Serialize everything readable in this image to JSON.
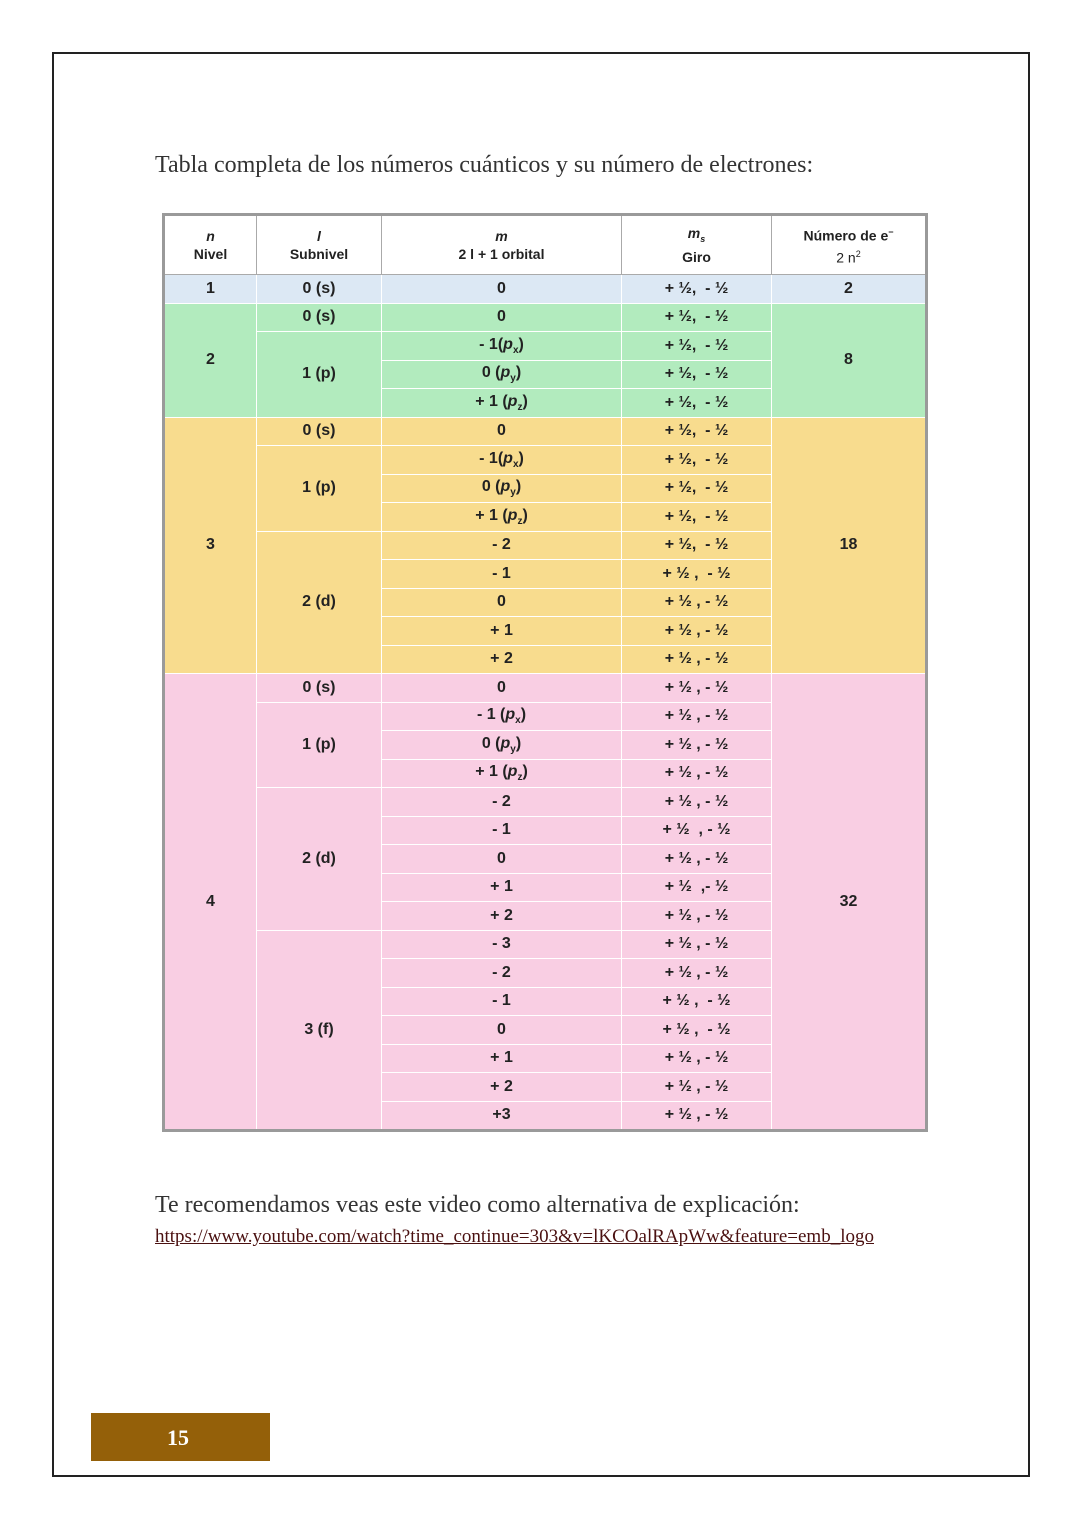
{
  "intro": "Tabla completa de los números cuánticos y su número de electrones:",
  "table": {
    "header": [
      {
        "symbol": "n",
        "label": "Nivel"
      },
      {
        "symbol": "l",
        "label": "Subnivel"
      },
      {
        "symbol": "m",
        "label": "2 l + 1  orbital"
      },
      {
        "symbol": "m",
        "sub": "s",
        "label": "Giro"
      },
      {
        "label": "Número de e",
        "sup": "−",
        "formula": "2 n",
        "formula_sup": "2"
      }
    ],
    "levels": [
      {
        "n": "1",
        "electrons": "2",
        "color": "#dce8f4",
        "subshells": [
          {
            "l": "0 (s)",
            "orbitals": [
              {
                "m": "0",
                "ms": "+ ½,  - ½"
              }
            ]
          }
        ]
      },
      {
        "n": "2",
        "electrons": "8",
        "color": "#b2ebbe",
        "subshells": [
          {
            "l": "0 (s)",
            "orbitals": [
              {
                "m": "0",
                "ms": "+ ½,  - ½"
              }
            ]
          },
          {
            "l": "1 (p)",
            "orbitals": [
              {
                "m": {
                  "text": "- 1(",
                  "italic": "p",
                  "sub": "x",
                  "close": ")"
                },
                "ms": "+ ½,  - ½"
              },
              {
                "m": {
                  "text": "0 (",
                  "italic": "p",
                  "sub": "y",
                  "close": ")"
                },
                "ms": "+ ½,  - ½"
              },
              {
                "m": {
                  "text": "+ 1 (",
                  "italic": "p",
                  "sub": "z",
                  "close": ")"
                },
                "ms": "+ ½,  - ½"
              }
            ]
          }
        ]
      },
      {
        "n": "3",
        "electrons": "18",
        "color": "#f8dc8e",
        "subshells": [
          {
            "l": "0 (s)",
            "orbitals": [
              {
                "m": "0",
                "ms": "+ ½,  - ½"
              }
            ]
          },
          {
            "l": "1 (p)",
            "orbitals": [
              {
                "m": {
                  "text": "- 1(",
                  "italic": "p",
                  "sub": "x",
                  "close": ")"
                },
                "ms": "+ ½,  - ½"
              },
              {
                "m": {
                  "text": "0 (",
                  "italic": "p",
                  "sub": "y",
                  "close": ")"
                },
                "ms": "+ ½,  - ½"
              },
              {
                "m": {
                  "text": "+ 1 (",
                  "italic": "p",
                  "sub": "z",
                  "close": ")"
                },
                "ms": "+ ½,  - ½"
              }
            ]
          },
          {
            "l": "2 (d)",
            "orbitals": [
              {
                "m": "- 2",
                "ms": "+ ½,  - ½"
              },
              {
                "m": "- 1",
                "ms": "+ ½ ,  - ½"
              },
              {
                "m": "0",
                "ms": "+ ½ , - ½"
              },
              {
                "m": "+ 1",
                "ms": "+ ½ , - ½"
              },
              {
                "m": "+ 2",
                "ms": "+ ½ , - ½"
              }
            ]
          }
        ]
      },
      {
        "n": "4",
        "electrons": "32",
        "color": "#f9cee3",
        "subshells": [
          {
            "l": "0 (s)",
            "orbitals": [
              {
                "m": "0",
                "ms": "+ ½ , - ½"
              }
            ]
          },
          {
            "l": "1 (p)",
            "orbitals": [
              {
                "m": {
                  "text": "- 1 (",
                  "italic": "p",
                  "sub": "x",
                  "close": ")"
                },
                "ms": "+ ½ , - ½"
              },
              {
                "m": {
                  "text": "0  (",
                  "italic": "p",
                  "sub": "y",
                  "close": ")"
                },
                "ms": "+ ½ , - ½"
              },
              {
                "m": {
                  "text": "+ 1  (",
                  "italic": "p",
                  "sub": "z",
                  "close": ")"
                },
                "ms": "+ ½ , - ½"
              }
            ]
          },
          {
            "l": "2 (d)",
            "orbitals": [
              {
                "m": "- 2",
                "ms": "+ ½ , - ½"
              },
              {
                "m": "- 1",
                "ms": "+ ½  , - ½"
              },
              {
                "m": "0",
                "ms": "+ ½ , - ½"
              },
              {
                "m": "+ 1",
                "ms": "+ ½  ,- ½"
              },
              {
                "m": "+ 2",
                "ms": "+ ½ , - ½"
              }
            ]
          },
          {
            "l": "3 (f)",
            "orbitals": [
              {
                "m": "- 3",
                "ms": "+ ½ , - ½"
              },
              {
                "m": "- 2",
                "ms": "+ ½ , - ½"
              },
              {
                "m": "- 1",
                "ms": "+ ½ ,  - ½"
              },
              {
                "m": "0",
                "ms": "+ ½ ,  - ½"
              },
              {
                "m": "+ 1",
                "ms": "+ ½ , - ½"
              },
              {
                "m": "+ 2",
                "ms": "+ ½ , - ½"
              },
              {
                "m": "+3",
                "ms": "+ ½ , - ½"
              }
            ]
          }
        ]
      }
    ]
  },
  "recommendation": "Te recomendamos veas este video como alternativa de explicación:",
  "link": "https://www.youtube.com/watch?time_continue=303&v=lKCOalRApWw&feature=emb_logo",
  "page_number": "15"
}
